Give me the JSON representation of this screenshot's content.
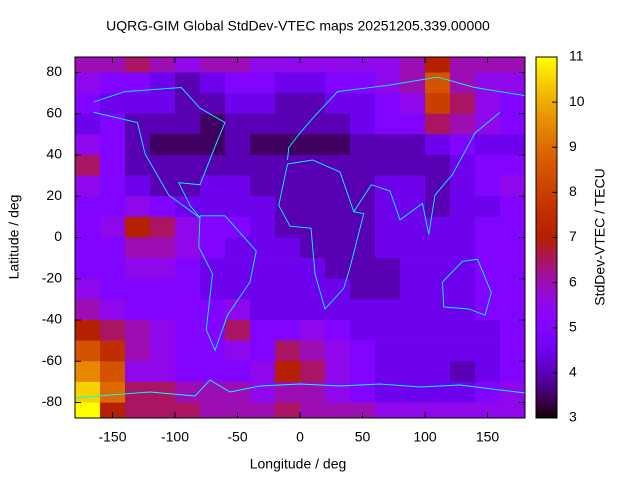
{
  "chart_data": {
    "type": "heatmap",
    "title": "UQRG-GIM Global StdDev-VTEC maps 20251205.339.00000",
    "xlabel": "Longitude / deg",
    "ylabel": "Latitude / deg",
    "cblabel": "StdDev-VTEC / TECU",
    "xlim": [
      -180,
      180
    ],
    "ylim": [
      -87.5,
      87.5
    ],
    "cblim": [
      3,
      11
    ],
    "xticks": [
      -150,
      -100,
      -50,
      0,
      50,
      100,
      150
    ],
    "yticks": [
      -80,
      -60,
      -40,
      -20,
      0,
      20,
      40,
      60,
      80
    ],
    "cbticks": [
      3,
      4,
      5,
      6,
      7,
      8,
      9,
      10,
      11
    ],
    "palette": "rgbformulae 7,5,15",
    "xbins": [
      -180,
      -160,
      -140,
      -120,
      -100,
      -80,
      -60,
      -40,
      -20,
      0,
      20,
      40,
      60,
      80,
      100,
      120,
      140,
      160,
      180
    ],
    "ybins": [
      87.5,
      80,
      70,
      60,
      50,
      40,
      30,
      20,
      10,
      0,
      -10,
      -20,
      -30,
      -40,
      -50,
      -60,
      -70,
      -80,
      -87.5
    ],
    "z": [
      [
        6,
        6,
        6.5,
        6,
        5.5,
        6,
        6,
        5.5,
        5.5,
        5.5,
        5.5,
        5.5,
        5.5,
        6,
        7,
        6,
        6,
        6
      ],
      [
        5.5,
        5,
        5,
        4.5,
        4,
        4.5,
        5,
        5,
        4.5,
        4.5,
        5,
        5,
        5.5,
        6,
        8.5,
        6,
        5.5,
        5.5
      ],
      [
        5,
        4.5,
        4.5,
        4.5,
        4,
        4,
        4.5,
        4.5,
        4,
        4,
        4.5,
        4.5,
        5,
        5.5,
        8,
        6.5,
        5.5,
        5
      ],
      [
        4.5,
        5,
        4,
        4,
        4,
        3.5,
        4,
        4,
        4,
        4,
        4,
        4.5,
        5,
        5,
        6.5,
        6,
        5.5,
        5
      ],
      [
        5.5,
        5,
        4,
        3.5,
        3.5,
        3.5,
        4,
        3.5,
        3.5,
        3.5,
        3.5,
        4,
        4,
        4,
        4.5,
        5,
        4.5,
        4.5
      ],
      [
        6.5,
        5,
        4,
        4,
        4,
        4,
        4,
        4,
        4,
        4,
        4,
        4,
        4,
        4,
        4,
        4.5,
        5,
        5
      ],
      [
        5.5,
        5,
        4.5,
        4,
        4,
        4.5,
        4.5,
        4,
        4,
        4,
        4,
        4,
        4.5,
        4.5,
        4,
        4.5,
        5,
        5.5
      ],
      [
        5,
        5,
        5.5,
        5,
        4.5,
        4.5,
        4.5,
        4.5,
        4,
        4,
        4,
        4,
        4.5,
        4.5,
        4,
        4.5,
        4.5,
        5
      ],
      [
        5,
        5.5,
        7,
        6.5,
        5.5,
        5,
        5,
        4.5,
        4,
        4,
        4,
        4,
        4.5,
        4.5,
        4.5,
        4.5,
        5,
        5
      ],
      [
        5,
        5,
        6,
        6,
        5.5,
        5,
        4.5,
        4.5,
        4.5,
        4,
        4,
        4,
        4.5,
        4.5,
        4.5,
        4.5,
        5,
        5
      ],
      [
        5,
        5,
        5.5,
        5.5,
        5,
        4.5,
        4.5,
        4.5,
        4.5,
        4.5,
        4,
        4,
        4,
        4.5,
        4.5,
        4.5,
        5,
        5
      ],
      [
        5.5,
        5,
        5,
        5,
        5,
        4.5,
        4.5,
        4.5,
        4.5,
        4.5,
        4.5,
        4,
        4,
        4.5,
        4.5,
        4.5,
        5,
        5
      ],
      [
        6,
        5.5,
        5,
        5,
        5,
        5,
        5.5,
        4.5,
        4.5,
        4.5,
        4.5,
        4.5,
        4.5,
        4.5,
        4.5,
        4.5,
        5,
        5
      ],
      [
        7,
        6.5,
        6,
        5.5,
        5,
        5,
        6.5,
        5,
        5,
        5.5,
        5,
        4.5,
        4.5,
        4.5,
        4.5,
        4.5,
        4.5,
        5
      ],
      [
        8.5,
        7.5,
        6,
        5.5,
        5,
        5,
        5.5,
        5,
        6.5,
        6,
        5.5,
        5,
        4.5,
        4.5,
        4.5,
        4.5,
        4.5,
        5
      ],
      [
        9.5,
        8.5,
        5.5,
        5.5,
        5,
        5,
        5,
        5.5,
        7,
        6.5,
        5.5,
        5,
        4.5,
        4.5,
        4.5,
        4,
        4.5,
        5
      ],
      [
        10.5,
        9,
        6.5,
        6.5,
        6,
        6,
        6,
        5.5,
        6,
        6,
        5.5,
        5,
        4.5,
        4.5,
        4.5,
        4.5,
        5,
        5.5
      ],
      [
        11,
        7,
        6.5,
        6.5,
        6.5,
        6,
        6,
        6,
        6.5,
        6,
        6,
        6,
        5.5,
        5.5,
        5.5,
        5.5,
        5.5,
        5.5
      ]
    ]
  }
}
